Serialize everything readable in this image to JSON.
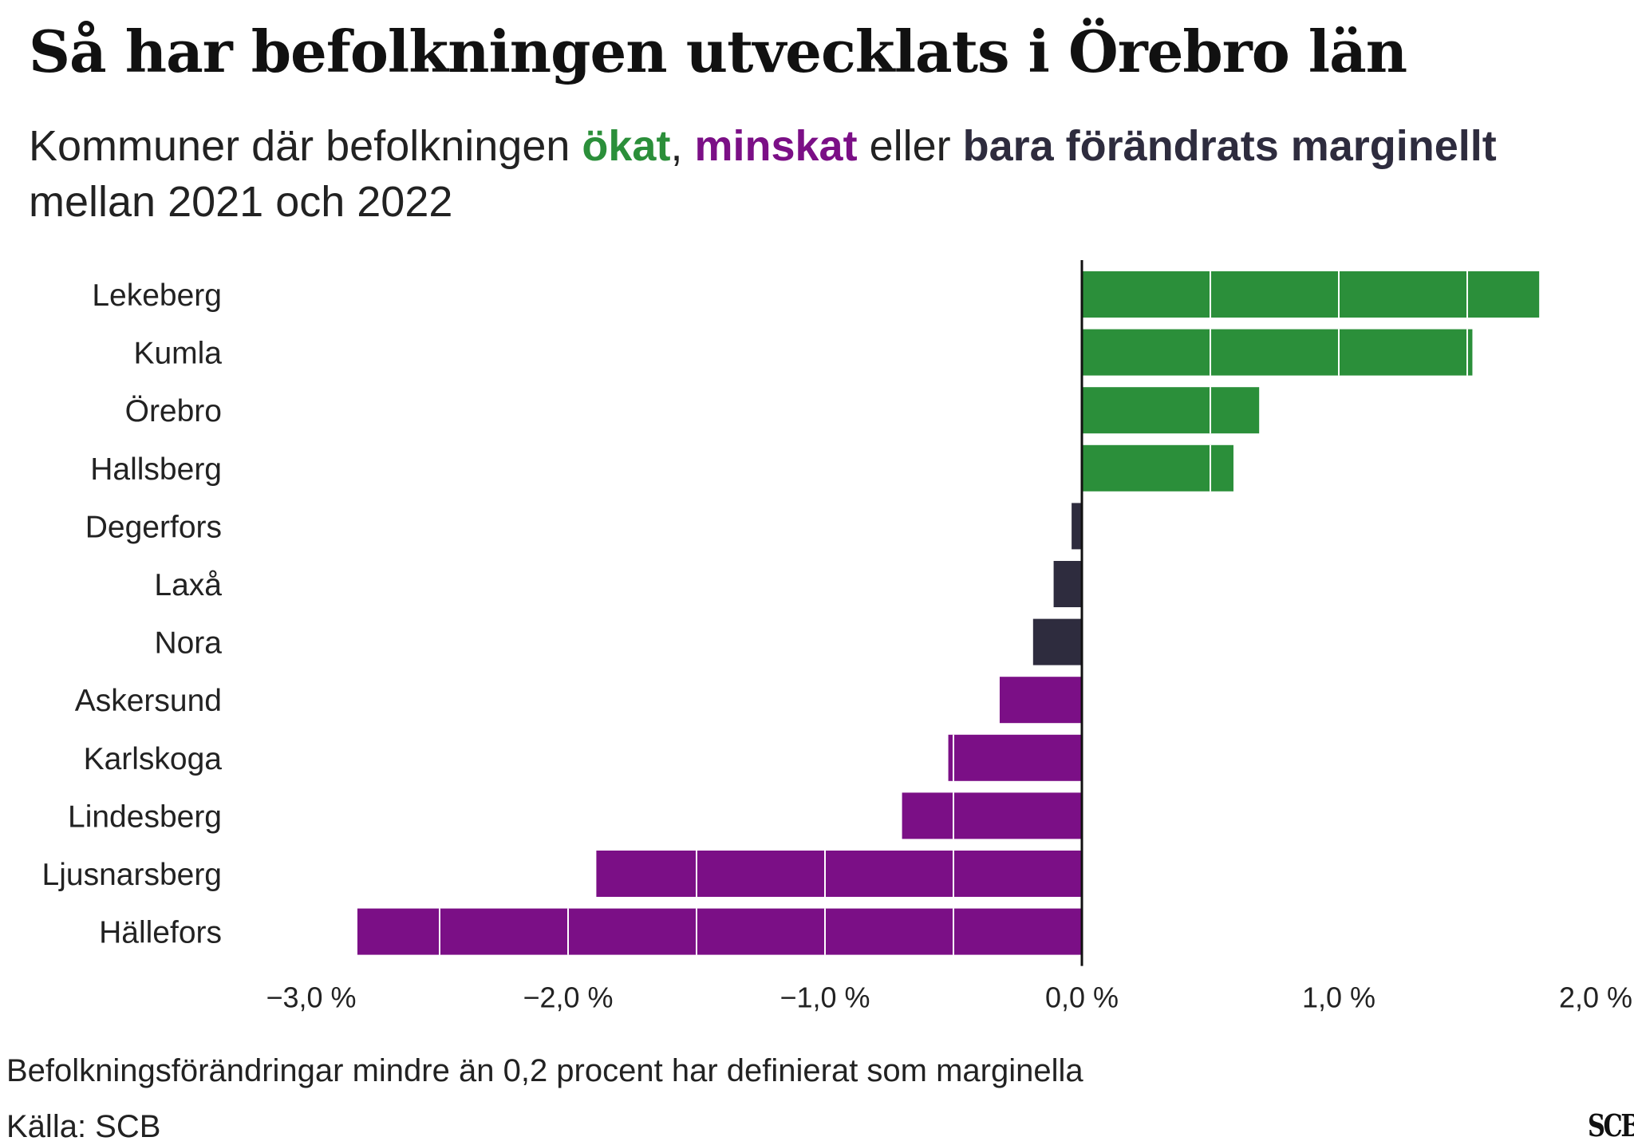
{
  "header": {
    "title": "Så har befolkningen utvecklats i Örebro län",
    "subtitle_part1": "Kommuner där befolkningen ",
    "subtitle_grow": "ökat",
    "subtitle_part2": ", ",
    "subtitle_shrink": "minskat",
    "subtitle_part3": " eller ",
    "subtitle_marg": "bara förändrats marginellt",
    "subtitle_part4": " mellan 2021 och 2022"
  },
  "footer": {
    "note": "Befolkningsförändringar mindre än 0,2 procent har definierat som marginella",
    "source": "Källa: SCB",
    "logo": "SCB"
  },
  "colors": {
    "increase": "#2b8f3a",
    "decrease": "#7b0f86",
    "marginal": "#2e2c3e",
    "axis": "#111111",
    "gridline_on_bar": "#ffffff"
  },
  "chart_data": {
    "type": "bar",
    "orientation": "horizontal",
    "categories": [
      "Lekeberg",
      "Kumla",
      "Örebro",
      "Hallsberg",
      "Degerfors",
      "Laxå",
      "Nora",
      "Askersund",
      "Karlskoga",
      "Lindesberg",
      "Ljusnarsberg",
      "Hällefors"
    ],
    "values": [
      1.78,
      1.52,
      0.69,
      0.59,
      -0.04,
      -0.11,
      -0.19,
      -0.32,
      -0.52,
      -0.7,
      -1.89,
      -2.82
    ],
    "groups": [
      "increase",
      "increase",
      "increase",
      "increase",
      "marginal",
      "marginal",
      "marginal",
      "decrease",
      "decrease",
      "decrease",
      "decrease",
      "decrease"
    ],
    "xlim": [
      -3.0,
      2.0
    ],
    "xticks": [
      -3,
      -2,
      -1,
      0,
      1,
      2
    ],
    "xtick_labels": [
      "−3,0 %",
      "−2,0 %",
      "−1,0 %",
      "0,0 %",
      "1,0 %",
      "2,0 %"
    ],
    "grid_lines_inside_bars_every": 0.5,
    "xlabel": "",
    "ylabel": ""
  }
}
